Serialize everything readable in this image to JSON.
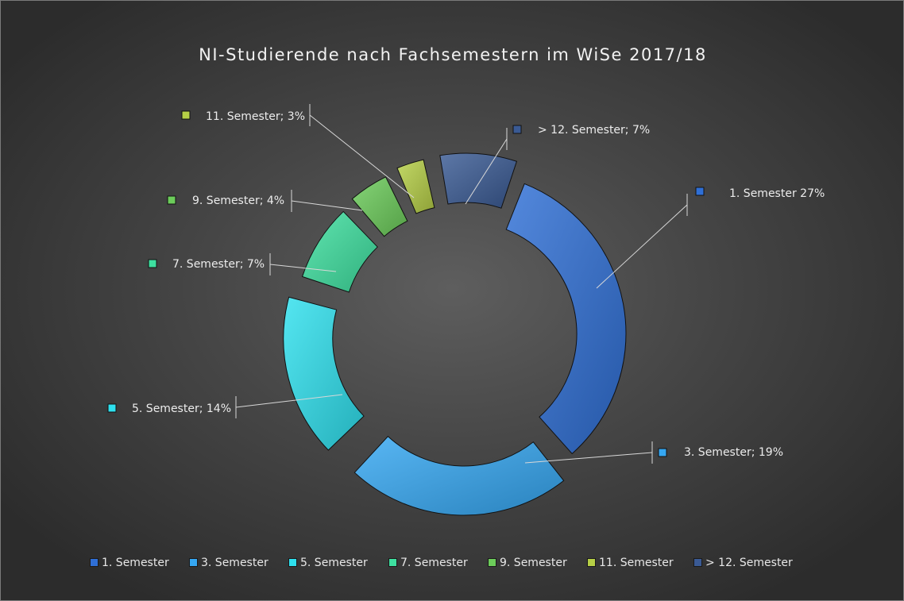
{
  "chart_data": {
    "type": "pie",
    "title": "NI-Studierende  nach  Fachsemestern  im  WiSe  2017/18",
    "legend_position": "bottom",
    "series": [
      {
        "name": "1. Semester",
        "label": "1. Semester 27%",
        "value": 27,
        "color": "#2f6fd6"
      },
      {
        "name": "3. Semester",
        "label": "3. Semester; 19%",
        "value": 19,
        "color": "#35a7f2"
      },
      {
        "name": "5. Semester",
        "label": "5. Semester; 14%",
        "value": 14,
        "color": "#2ee0ee"
      },
      {
        "name": "7. Semester",
        "label": "7. Semester; 7%",
        "value": 7,
        "color": "#3ee0a0"
      },
      {
        "name": "9. Semester",
        "label": "9. Semester; 4%",
        "value": 4,
        "color": "#6ccc5a"
      },
      {
        "name": "11. Semester",
        "label": "11. Semester; 3%",
        "value": 3,
        "color": "#b6cf46"
      },
      {
        "name": "> 12. Semester",
        "label": "> 12. Semester; 7%",
        "value": 7,
        "color": "#3a5a94"
      }
    ]
  }
}
